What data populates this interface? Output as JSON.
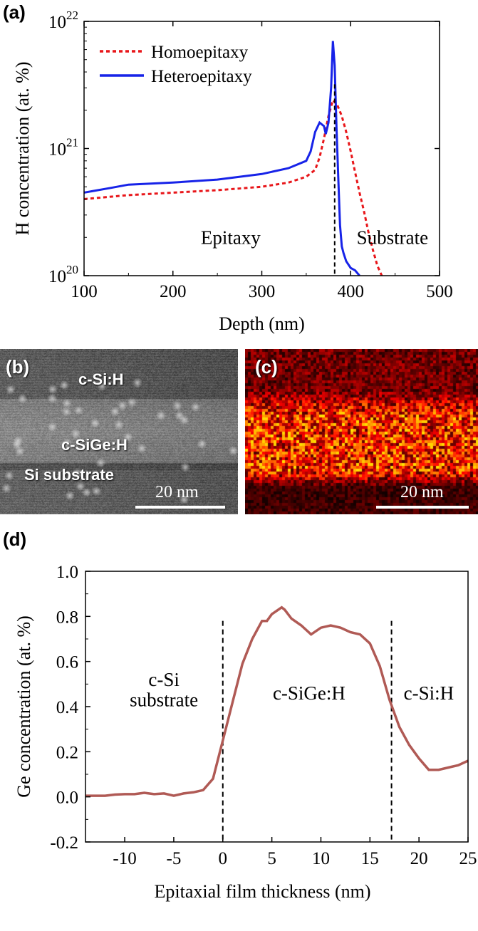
{
  "panels": {
    "a_label": "(a)",
    "b_label": "(b)",
    "c_label": "(c)",
    "d_label": "(d)"
  },
  "colors": {
    "homoepitaxy": "#e8161a",
    "heteroepitaxy": "#1723e8",
    "ge_profile": "#b05a55"
  },
  "chart_data": [
    {
      "panel": "(a)",
      "type": "line",
      "title": "",
      "xlabel": "Depth (nm)",
      "ylabel": "H concentration (at. %)",
      "xlim": [
        100,
        500
      ],
      "ylim": [
        1e+20,
        1e+22
      ],
      "yscale": "log",
      "xticks": [
        100,
        200,
        300,
        400,
        500
      ],
      "yticks": [
        {
          "value": 1e+20,
          "base": "10",
          "exp": "20"
        },
        {
          "value": 1e+21,
          "base": "10",
          "exp": "21"
        },
        {
          "value": 1e+22,
          "base": "10",
          "exp": "22"
        }
      ],
      "legend_position": "top-left",
      "series": [
        {
          "name": "Homoepitaxy",
          "style": "dotted",
          "x": [
            100,
            150,
            200,
            250,
            300,
            330,
            350,
            360,
            365,
            370,
            375,
            380,
            385,
            390,
            395,
            400,
            405,
            410,
            415,
            420,
            425,
            430,
            435
          ],
          "y": [
            4e+20,
            4.3e+20,
            4.5e+20,
            4.7e+20,
            5e+20,
            5.4e+20,
            6e+20,
            6.8e+20,
            8.5e+20,
            1.2e+21,
            1.8e+21,
            2.4e+21,
            2.2e+21,
            1.8e+21,
            1.35e+21,
            9.5e+20,
            6.5e+20,
            4.5e+20,
            3.2e+20,
            2.2e+20,
            1.6e+20,
            1.2e+20,
            1e+20
          ]
        },
        {
          "name": "Heteroepitaxy",
          "style": "solid",
          "x": [
            100,
            130,
            150,
            200,
            250,
            300,
            330,
            350,
            355,
            360,
            365,
            370,
            372,
            375,
            378,
            380,
            382,
            384,
            386,
            388,
            390,
            392,
            395,
            400,
            405,
            410
          ],
          "y": [
            4.5e+20,
            4.9e+20,
            5.2e+20,
            5.4e+20,
            5.7e+20,
            6.3e+20,
            7e+20,
            8e+20,
            9.5e+20,
            1.35e+21,
            1.6e+21,
            1.5e+21,
            1.3e+21,
            1.6e+21,
            3e+21,
            7e+21,
            4.5e+21,
            1.5e+21,
            6e+20,
            2.5e+20,
            1.7e+20,
            1.5e+20,
            1.3e+20,
            1.15e+20,
            1.1e+20,
            1e+20
          ]
        }
      ],
      "reference_line": {
        "x": 382,
        "style": "dashed"
      },
      "annotations": [
        {
          "text": "Epitaxy",
          "x": 265,
          "y": 2e+20
        },
        {
          "text": "Substrate",
          "x": 447,
          "y": 2e+20
        }
      ]
    },
    {
      "panel": "(d)",
      "type": "line",
      "title": "",
      "xlabel": "Epitaxial film thickness (nm)",
      "ylabel": "Ge concentration (at. %)",
      "xlim": [
        -14,
        25
      ],
      "ylim": [
        -0.2,
        1.0
      ],
      "xticks": [
        -10,
        -5,
        0,
        5,
        10,
        15,
        20,
        25
      ],
      "yticks": [
        -0.2,
        0.0,
        0.2,
        0.4,
        0.6,
        0.8,
        1.0
      ],
      "series": [
        {
          "name": "",
          "x": [
            -14,
            -12,
            -11,
            -10,
            -9,
            -8,
            -7,
            -6,
            -5,
            -4,
            -3,
            -2,
            -1,
            0,
            1,
            2,
            3,
            4,
            4.5,
            5,
            6,
            6.3,
            7,
            8,
            9,
            10,
            11,
            12,
            13,
            14,
            15,
            16,
            17,
            18,
            19,
            20,
            21,
            22,
            23,
            24,
            25
          ],
          "y": [
            0.005,
            0.005,
            0.01,
            0.012,
            0.012,
            0.018,
            0.012,
            0.015,
            0.005,
            0.015,
            0.02,
            0.03,
            0.08,
            0.25,
            0.42,
            0.59,
            0.7,
            0.78,
            0.78,
            0.81,
            0.84,
            0.83,
            0.79,
            0.76,
            0.72,
            0.75,
            0.76,
            0.75,
            0.73,
            0.72,
            0.68,
            0.58,
            0.43,
            0.31,
            0.23,
            0.17,
            0.12,
            0.12,
            0.13,
            0.14,
            0.16
          ]
        }
      ],
      "reference_lines": [
        {
          "x": 0,
          "style": "dashed"
        },
        {
          "x": 17.2,
          "style": "dashed"
        }
      ],
      "annotations": [
        {
          "text": "c-Si",
          "x": -6.0,
          "y": 0.52
        },
        {
          "text": "substrate",
          "x": -6.0,
          "y": 0.43
        },
        {
          "text": "c-SiGe:H",
          "x": 8.8,
          "y": 0.46
        },
        {
          "text": "c-Si:H",
          "x": 21.0,
          "y": 0.46
        }
      ]
    }
  ],
  "image_b": {
    "layer_top": "c-Si:H",
    "layer_middle": "c-SiGe:H",
    "layer_bottom": "Si substrate",
    "scale_label": "20 nm"
  },
  "image_c": {
    "scale_label": "20 nm"
  }
}
